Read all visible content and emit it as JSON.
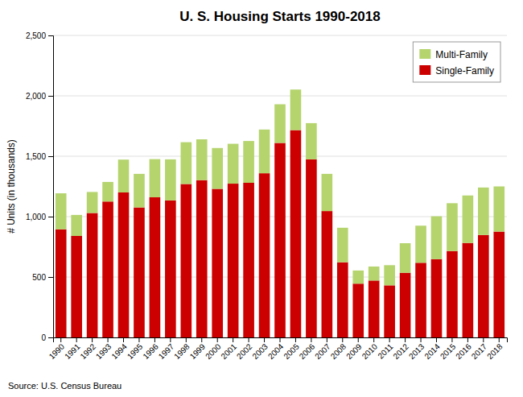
{
  "chart_data": {
    "type": "bar",
    "stacked": true,
    "title": "U. S. Housing Starts 1990-2018",
    "ylabel": "# Units (in thousands)",
    "source": "Source: U.S. Census Bureau",
    "categories": [
      "1990",
      "1991",
      "1992",
      "1993",
      "1994",
      "1995",
      "1996",
      "1997",
      "1998",
      "1999",
      "2000",
      "2001",
      "2002",
      "2003",
      "2004",
      "2005",
      "2006",
      "2007",
      "2008",
      "2009",
      "2010",
      "2011",
      "2012",
      "2013",
      "2014",
      "2015",
      "2016",
      "2017",
      "2018"
    ],
    "series": [
      {
        "name": "Single-Family",
        "color": "#cc0000",
        "values": [
          895,
          840,
          1030,
          1125,
          1200,
          1076,
          1160,
          1134,
          1270,
          1302,
          1230,
          1273,
          1280,
          1359,
          1610,
          1716,
          1474,
          1046,
          622,
          445,
          471,
          431,
          535,
          618,
          648,
          715,
          782,
          848,
          876
        ]
      },
      {
        "name": "Multi-Family",
        "color": "#b5d46e",
        "values": [
          298,
          174,
          174,
          162,
          272,
          278,
          316,
          340,
          346,
          338,
          338,
          330,
          346,
          362,
          320,
          336,
          300,
          308,
          286,
          109,
          116,
          167,
          245,
          307,
          355,
          396,
          393,
          393,
          374
        ]
      }
    ],
    "ylim": [
      0,
      2500
    ],
    "yticks": [
      0,
      500,
      {
        "value": 1000,
        "label": "1,000"
      },
      {
        "value": 1500,
        "label": "1,500"
      },
      {
        "value": 2000,
        "label": "2,000"
      },
      {
        "value": 2500,
        "label": "2,500"
      }
    ],
    "grid": true,
    "legend": "upper right"
  }
}
